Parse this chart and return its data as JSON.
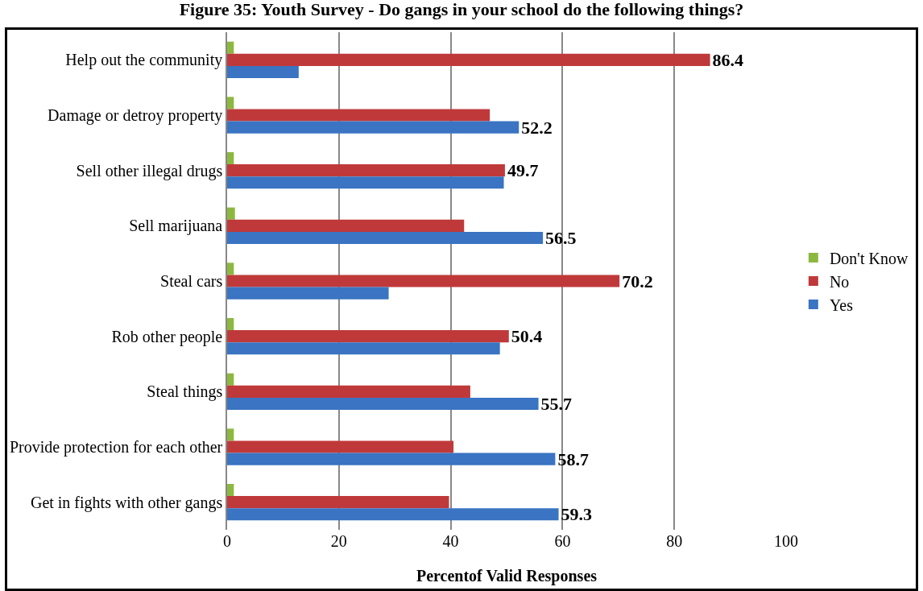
{
  "chart_data": {
    "type": "bar",
    "orientation": "horizontal",
    "title": "Figure 35: Youth Survey - Do gangs in your school do the following things?",
    "xlabel": "Percentof Valid Responses",
    "categories": [
      "Help out the community",
      "Damage or detroy property",
      "Sell other illegal drugs",
      "Sell marijuana",
      "Steal cars",
      "Rob other people",
      "Steal things",
      "Provide protection for each other",
      "Get in fights with other gangs"
    ],
    "series": [
      {
        "name": "Don't Know",
        "color": "#8db83f",
        "values": [
          1.2,
          1.2,
          1.2,
          1.4,
          1.2,
          1.2,
          1.2,
          1.2,
          1.2
        ]
      },
      {
        "name": "No",
        "color": "#c0393a",
        "values": [
          86.4,
          47.0,
          49.7,
          42.4,
          70.2,
          50.4,
          43.5,
          40.5,
          39.7
        ],
        "value_labels": [
          "86.4",
          null,
          "49.7",
          null,
          "70.2",
          "50.4",
          null,
          null,
          null
        ]
      },
      {
        "name": "Yes",
        "color": "#3a74c2",
        "values": [
          12.8,
          52.2,
          49.5,
          56.5,
          28.9,
          48.8,
          55.7,
          58.7,
          59.3
        ],
        "value_labels": [
          null,
          "52.2",
          null,
          "56.5",
          null,
          null,
          "55.7",
          "58.7",
          "59.3"
        ]
      }
    ],
    "xlim": [
      0,
      100
    ],
    "xticks": [
      0,
      20,
      40,
      60,
      80,
      100
    ],
    "grid": "x",
    "legend": "right"
  }
}
